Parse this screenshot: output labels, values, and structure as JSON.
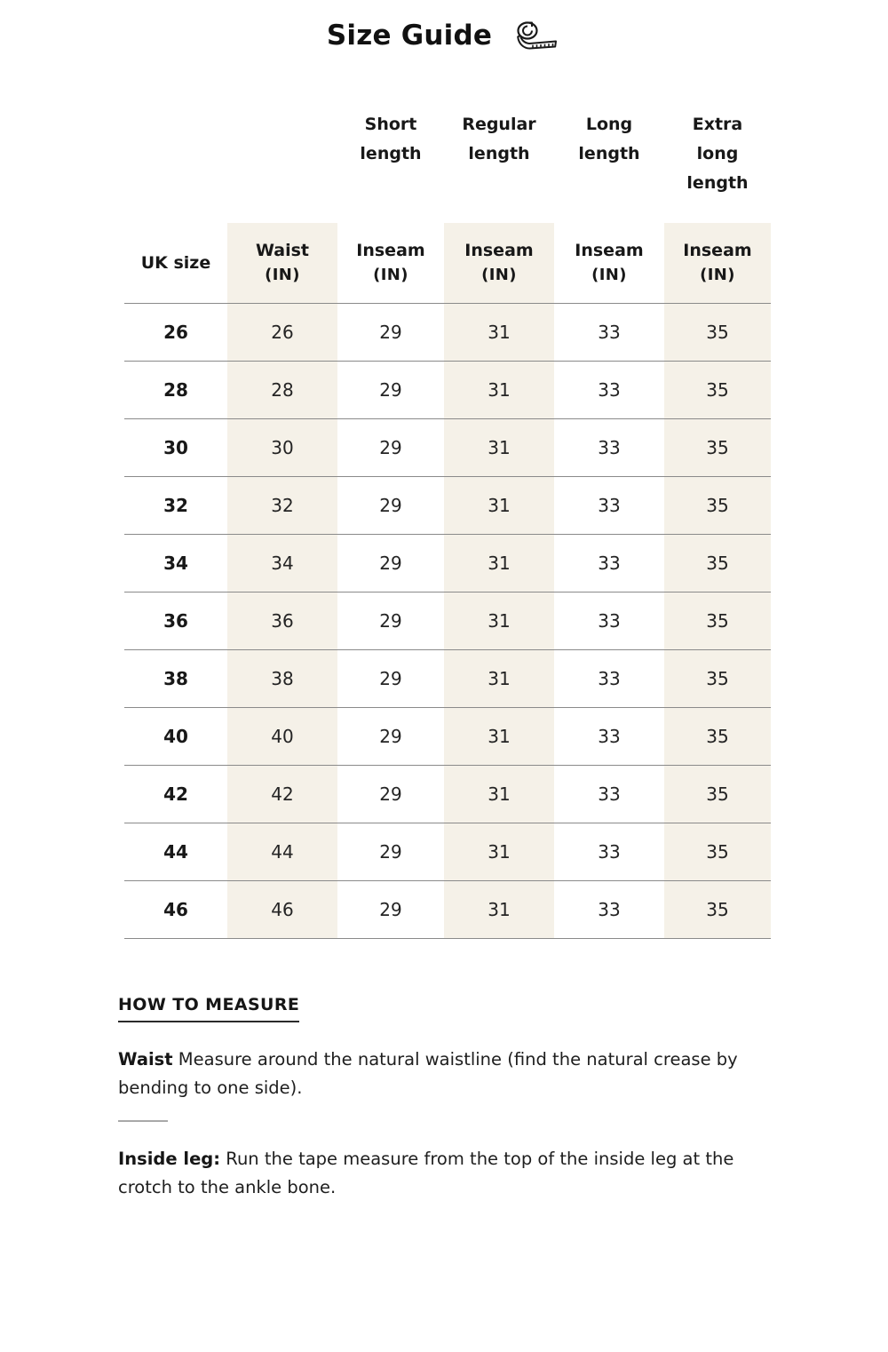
{
  "page": {
    "title": "Size Guide",
    "title_icon": "tape-measure-icon"
  },
  "size_table": {
    "length_headers": [
      "Short length",
      "Regular length",
      "Long length",
      "Extra long length"
    ],
    "column_headers": [
      {
        "label": "UK size",
        "unit": ""
      },
      {
        "label": "Waist",
        "unit": "(IN)"
      },
      {
        "label": "Inseam",
        "unit": "(IN)"
      },
      {
        "label": "Inseam",
        "unit": "(IN)"
      },
      {
        "label": "Inseam",
        "unit": "(IN)"
      },
      {
        "label": "Inseam",
        "unit": "(IN)"
      }
    ],
    "rows": [
      [
        "26",
        "26",
        "29",
        "31",
        "33",
        "35"
      ],
      [
        "28",
        "28",
        "29",
        "31",
        "33",
        "35"
      ],
      [
        "30",
        "30",
        "29",
        "31",
        "33",
        "35"
      ],
      [
        "32",
        "32",
        "29",
        "31",
        "33",
        "35"
      ],
      [
        "34",
        "34",
        "29",
        "31",
        "33",
        "35"
      ],
      [
        "36",
        "36",
        "29",
        "31",
        "33",
        "35"
      ],
      [
        "38",
        "38",
        "29",
        "31",
        "33",
        "35"
      ],
      [
        "40",
        "40",
        "29",
        "31",
        "33",
        "35"
      ],
      [
        "42",
        "42",
        "29",
        "31",
        "33",
        "35"
      ],
      [
        "44",
        "44",
        "29",
        "31",
        "33",
        "35"
      ],
      [
        "46",
        "46",
        "29",
        "31",
        "33",
        "35"
      ]
    ]
  },
  "how_to_measure": {
    "heading": "HOW TO MEASURE",
    "waist_label": "Waist",
    "waist_text": " Measure around the natural waistline (find the natural crease by bending to one side).",
    "inside_leg_label": "Inside leg:",
    "inside_leg_text": " Run the tape measure from the top of the inside leg at the crotch to the ankle bone."
  },
  "colors": {
    "column_highlight": "#f5f1e8",
    "row_line": "#8a8a8a",
    "text": "#1f1f1f",
    "divider": "#a9a9a9",
    "background": "#ffffff"
  }
}
